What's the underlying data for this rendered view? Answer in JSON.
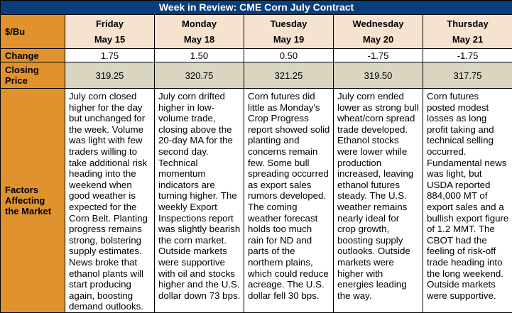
{
  "title": "Week in Review: CME Corn July Contract",
  "row_labels": {
    "unit": "$/Bu",
    "change": "Change",
    "closing_line1": "Closing",
    "closing_line2": "Price",
    "factors_line1": "Factors",
    "factors_line2": "Affecting",
    "factors_line3": "the Market"
  },
  "days": [
    {
      "day": "Friday",
      "date": "May 15",
      "change": "1.75",
      "close": "319.25",
      "factors": "July corn closed higher for the day but unchanged for the week. Volume was light with few traders willing to take additional risk heading into the weekend when good weather is expected for the Corn Belt. Planting progress remains strong, bolstering supply estimates. News broke that ethanol plants will start producing again, boosting demand outlooks."
    },
    {
      "day": "Monday",
      "date": "May 18",
      "change": "1.50",
      "close": "320.75",
      "factors": "July corn drifted higher in low-volume trade, closing above the 20-day MA for the second day. Technical momentum indicators are turning higher. The weekly Export Inspections report was slightly bearish the corn market. Outside markets were supportive with oil and stocks higher and the U.S. dollar down 73 bps."
    },
    {
      "day": "Tuesday",
      "date": "May 19",
      "change": "0.50",
      "close": "321.25",
      "factors": "Corn futures did little as Monday's Crop Progress report showed solid planting and concerns remain few. Some bull spreading occurred as export sales rumors developed. The coming weather forecast holds too much rain for ND and parts of the northern plains, which could reduce acreage. The U.S. dollar fell 30 bps."
    },
    {
      "day": "Wednesday",
      "date": "May 20",
      "change": "-1.75",
      "close": "319.50",
      "factors": " July corn ended lower as strong bull wheat/corn spread trade developed. Ethanol stocks were lower while production increased, leaving ethanol futures steady. The U.S. weather remains nearly ideal for crop growth, boosting supply outlooks. Outside markets were higher with energies leading the way."
    },
    {
      "day": "Thursday",
      "date": "May 21",
      "change": "-1.75",
      "close": "317.75",
      "factors": "Corn futures posted modest losses as long profit taking and technical selling occurred. Fundamental news was light, but USDA reported 884,000 MT of export sales and a bullish export figure of 1.2 MMT. The CBOT had the feeling of risk-off trade heading into the long weekend. Outside markets were supportive."
    }
  ],
  "colors": {
    "title_bg": "#0a3d7c",
    "rowhead_bg": "#e0922e",
    "dayhead_bg": "#f6e3cf",
    "close_bg": "#d9d5c1"
  }
}
